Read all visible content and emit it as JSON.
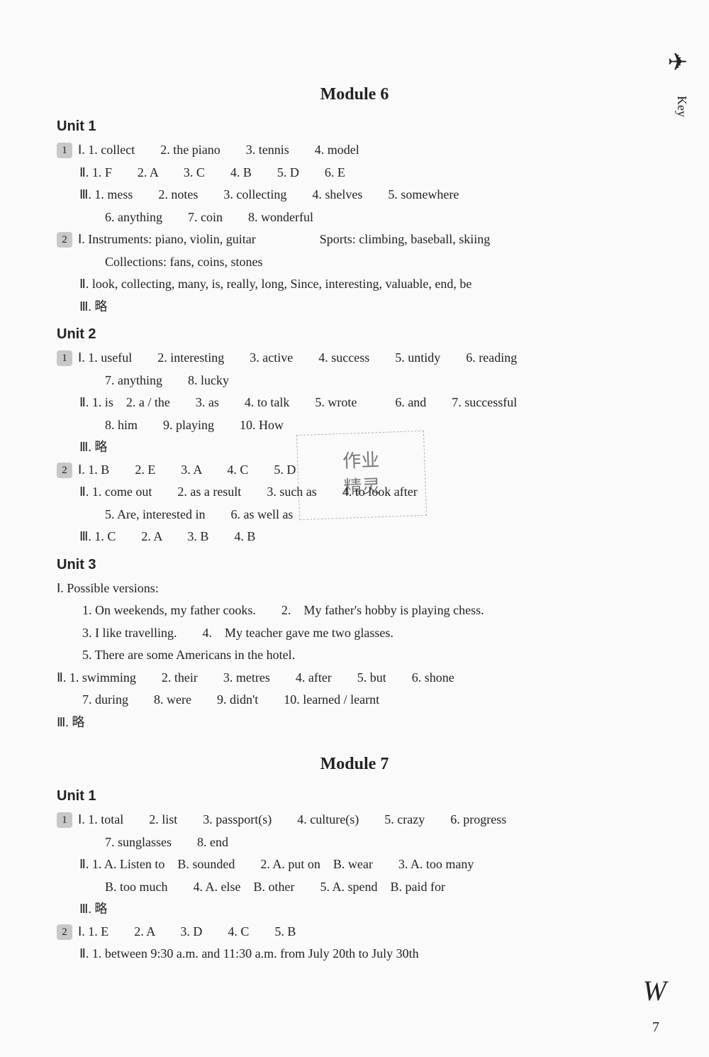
{
  "side_label": "Key",
  "bird_icon": "✈",
  "modules": [
    {
      "title": "Module 6",
      "units": [
        {
          "title": "Unit 1",
          "sections": [
            {
              "bullet": "1",
              "lines": [
                "Ⅰ. 1. collect　　2. the piano　　3. tennis　　4. model",
                "Ⅱ. 1. F　　2. A　　3. C　　4. B　　5. D　　6. E",
                "Ⅲ. 1. mess　　2. notes　　3. collecting　　4. shelves　　5. somewhere",
                "　　6. anything　　7. coin　　8. wonderful"
              ]
            },
            {
              "bullet": "2",
              "lines": [
                "Ⅰ. Instruments: piano, violin, guitar　　　　　Sports: climbing, baseball, skiing",
                "　　Collections: fans, coins, stones",
                "Ⅱ. look, collecting, many, is, really, long, Since, interesting, valuable, end, be",
                "Ⅲ. 略"
              ]
            }
          ]
        },
        {
          "title": "Unit 2",
          "sections": [
            {
              "bullet": "1",
              "lines": [
                "Ⅰ. 1. useful　　2. interesting　　3. active　　4. success　　5. untidy　　6. reading",
                "　　7. anything　　8. lucky",
                "Ⅱ. 1. is　2. a / the　　3. as　　4. to talk　　5. wrote　　　6. and　　7. successful",
                "　　8. him　　9. playing　　10. How",
                "Ⅲ. 略"
              ]
            },
            {
              "bullet": "2",
              "lines": [
                "Ⅰ. 1. B　　2. E　　3. A　　4. C　　5. D",
                "Ⅱ. 1. come out　　2. as a result　　3. such as　　4. to look after",
                "　　5. Are, interested in　　6. as well as",
                "Ⅲ. 1. C　　2. A　　3. B　　4. B"
              ]
            }
          ]
        },
        {
          "title": "Unit 3",
          "sections": [
            {
              "bullet": "",
              "lines": [
                "Ⅰ. Possible versions:",
                "　　1. On weekends, my father cooks.　　2.　My father's hobby is playing chess.",
                "　　3. I like travelling.　　4.　My teacher gave me two glasses.",
                "　　5. There are some Americans in the hotel.",
                "Ⅱ. 1. swimming　　2. their　　3. metres　　4. after　　5. but　　6. shone",
                "　　7. during　　8. were　　9. didn't　　10. learned / learnt",
                "Ⅲ. 略"
              ]
            }
          ]
        }
      ]
    },
    {
      "title": "Module 7",
      "units": [
        {
          "title": "Unit 1",
          "sections": [
            {
              "bullet": "1",
              "lines": [
                "Ⅰ. 1. total　　2. list　　3. passport(s)　　4. culture(s)　　5. crazy　　6. progress",
                "　　7. sunglasses　　8. end",
                "Ⅱ. 1. A. Listen to　B. sounded　　2. A. put on　B. wear　　3. A. too many",
                "　　B. too much　　4. A. else　B. other　　5. A. spend　B. paid for",
                "Ⅲ. 略"
              ]
            },
            {
              "bullet": "2",
              "lines": [
                "Ⅰ. 1. E　　2. A　　3. D　　4. C　　5. B",
                "Ⅱ. 1. between 9:30 a.m. and 11:30 a.m. from July 20th to July 30th"
              ]
            }
          ]
        }
      ]
    }
  ],
  "watermark_text": "作业\n精灵",
  "page_number": "7",
  "brace_char": "W"
}
